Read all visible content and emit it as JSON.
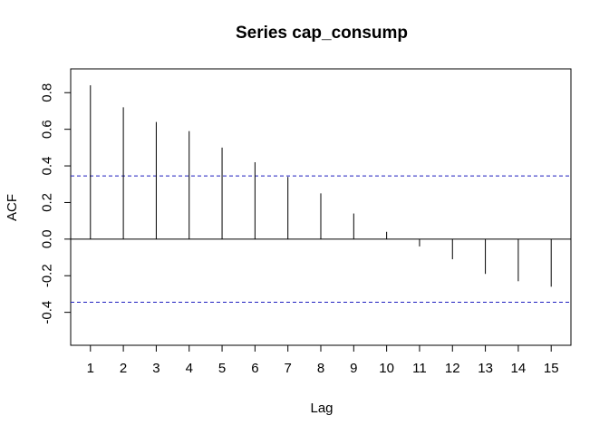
{
  "chart_data": {
    "type": "bar",
    "title": "Series  cap_consump",
    "xlabel": "Lag",
    "ylabel": "ACF",
    "x": [
      1,
      2,
      3,
      4,
      5,
      6,
      7,
      8,
      9,
      10,
      11,
      12,
      13,
      14,
      15
    ],
    "values": [
      0.84,
      0.72,
      0.64,
      0.59,
      0.5,
      0.42,
      0.34,
      0.25,
      0.14,
      0.04,
      -0.04,
      -0.11,
      -0.19,
      -0.23,
      -0.26
    ],
    "xlim": [
      0.4,
      15.6
    ],
    "ylim": [
      -0.58,
      0.93
    ],
    "xticks": [
      1,
      2,
      3,
      4,
      5,
      6,
      7,
      8,
      9,
      10,
      11,
      12,
      13,
      14,
      15
    ],
    "yticks": [
      -0.4,
      -0.2,
      0.0,
      0.2,
      0.4,
      0.6,
      0.8
    ],
    "ytick_labels": [
      "-0.4",
      "-0.2",
      "0.0",
      "0.2",
      "0.4",
      "0.6",
      "0.8"
    ],
    "confidence_bound": 0.345,
    "colors": {
      "bars": "#000000",
      "zero_line": "#000000",
      "confidence": "#1f1fbf",
      "frame": "#000000"
    },
    "grid": false
  }
}
